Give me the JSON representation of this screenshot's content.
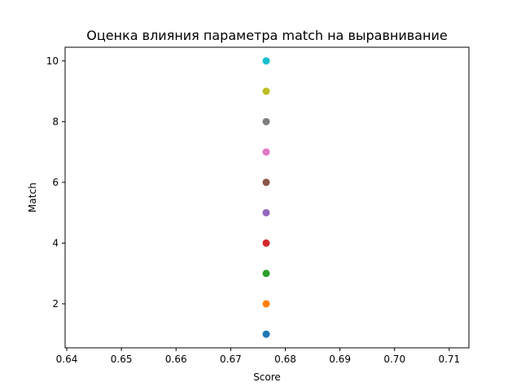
{
  "chart_data": {
    "type": "scatter",
    "title": "Оценка влияния параметра match на выравнивание",
    "xlabel": "Score",
    "ylabel": "Match",
    "xlim": [
      0.6397,
      0.7136
    ],
    "ylim": [
      0.55,
      10.45
    ],
    "xticks": [
      "0.64",
      "0.65",
      "0.66",
      "0.67",
      "0.68",
      "0.69",
      "0.70",
      "0.71"
    ],
    "yticks": [
      "2",
      "4",
      "6",
      "8",
      "10"
    ],
    "grid": false,
    "points": [
      {
        "x": 0.6765,
        "y": 1,
        "color": "#1f77b4"
      },
      {
        "x": 0.6765,
        "y": 2,
        "color": "#ff7f0e"
      },
      {
        "x": 0.6765,
        "y": 3,
        "color": "#2ca02c"
      },
      {
        "x": 0.6765,
        "y": 4,
        "color": "#d62728"
      },
      {
        "x": 0.6765,
        "y": 5,
        "color": "#9467bd"
      },
      {
        "x": 0.6765,
        "y": 6,
        "color": "#8c564b"
      },
      {
        "x": 0.6765,
        "y": 7,
        "color": "#e377c2"
      },
      {
        "x": 0.6765,
        "y": 8,
        "color": "#7f7f7f"
      },
      {
        "x": 0.6765,
        "y": 9,
        "color": "#bcbd22"
      },
      {
        "x": 0.6765,
        "y": 10,
        "color": "#17becf"
      }
    ]
  }
}
